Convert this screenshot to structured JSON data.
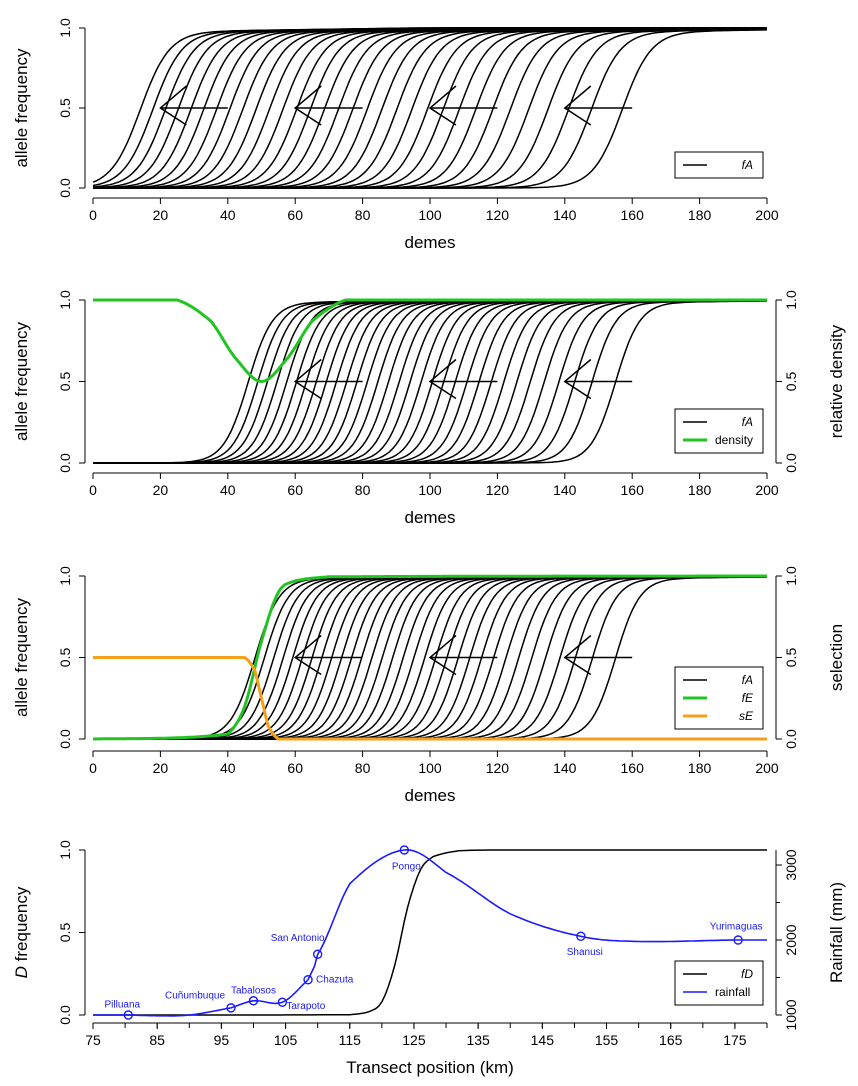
{
  "chart_data": [
    {
      "type": "line",
      "xlabel": "demes",
      "ylabel": "allele frequency",
      "xlim": [
        0,
        200
      ],
      "ylim": [
        0,
        1
      ],
      "xticks": [
        "0",
        "20",
        "40",
        "60",
        "80",
        "100",
        "120",
        "140",
        "160",
        "180",
        "200"
      ],
      "yticks": [
        "0.0",
        "0.5",
        "1.0"
      ],
      "series": [
        {
          "name": "fA",
          "color": "#000000",
          "description_values": {
            "curves": 32,
            "midpoint_start": 157,
            "midpoint_end": 14,
            "width": 4.3,
            "upper": 0.975
          }
        }
      ],
      "arrows": [
        {
          "x_from": 40,
          "x_to": 20,
          "y": 0.5
        },
        {
          "x_from": 80,
          "x_to": 60,
          "y": 0.5
        },
        {
          "x_from": 120,
          "x_to": 100,
          "y": 0.5
        },
        {
          "x_from": 160,
          "x_to": 140,
          "y": 0.5
        }
      ],
      "legend": {
        "position": "bottom-right",
        "entries": [
          {
            "label": "fA",
            "color": "#000000"
          }
        ]
      }
    },
    {
      "type": "line",
      "xlabel": "demes",
      "ylabel": "allele frequency",
      "y2label": "relative density",
      "xlim": [
        0,
        200
      ],
      "ylim": [
        0,
        1
      ],
      "xticks": [
        "0",
        "20",
        "40",
        "60",
        "80",
        "100",
        "120",
        "140",
        "160",
        "180",
        "200"
      ],
      "yticks": [
        "0.0",
        "0.5",
        "1.0"
      ],
      "series": [
        {
          "name": "fA",
          "color": "#000000",
          "description_values": {
            "curves": 32,
            "midpoint_start": 155,
            "midpoint_end": 46,
            "width": 3.6
          }
        },
        {
          "name": "density",
          "color": "#22c422",
          "x": [
            0,
            25,
            35,
            42,
            50,
            58,
            65,
            75,
            200
          ],
          "y": [
            1.0,
            1.0,
            0.87,
            0.65,
            0.5,
            0.65,
            0.87,
            1.0,
            1.0
          ]
        }
      ],
      "arrows": [
        {
          "x_from": 80,
          "x_to": 60,
          "y": 0.5
        },
        {
          "x_from": 120,
          "x_to": 100,
          "y": 0.5
        },
        {
          "x_from": 160,
          "x_to": 140,
          "y": 0.5
        }
      ],
      "legend": {
        "position": "bottom-right",
        "entries": [
          {
            "label": "fA",
            "color": "#000000"
          },
          {
            "label": "density",
            "color": "#22c422"
          }
        ]
      }
    },
    {
      "type": "line",
      "xlabel": "demes",
      "ylabel": "allele frequency",
      "y2label": "selection",
      "xlim": [
        0,
        200
      ],
      "ylim": [
        0,
        1
      ],
      "xticks": [
        "0",
        "20",
        "40",
        "60",
        "80",
        "100",
        "120",
        "140",
        "160",
        "180",
        "200"
      ],
      "yticks": [
        "0.0",
        "0.5",
        "1.0"
      ],
      "series": [
        {
          "name": "fA",
          "color": "#000000",
          "description_values": {
            "curves": 32,
            "midpoint_start": 155,
            "midpoint_end": 48,
            "width": 3.6
          }
        },
        {
          "name": "fE",
          "color": "#22c422",
          "x": [
            0,
            40,
            45,
            50,
            55,
            60,
            70,
            200
          ],
          "y": [
            0.0,
            0.03,
            0.2,
            0.6,
            0.9,
            0.97,
            0.995,
            1.0
          ]
        },
        {
          "name": "sE",
          "color": "#f5a01a",
          "x": [
            0,
            45,
            48,
            50,
            52,
            55,
            200
          ],
          "y": [
            0.5,
            0.5,
            0.42,
            0.25,
            0.08,
            0.0,
            0.0
          ]
        }
      ],
      "arrows": [
        {
          "x_from": 80,
          "x_to": 60,
          "y": 0.5
        },
        {
          "x_from": 120,
          "x_to": 100,
          "y": 0.5
        },
        {
          "x_from": 160,
          "x_to": 140,
          "y": 0.5
        }
      ],
      "legend": {
        "position": "bottom-right",
        "entries": [
          {
            "label": "fA",
            "color": "#000000"
          },
          {
            "label": "fE",
            "color": "#22c422"
          },
          {
            "label": "sE",
            "color": "#f5a01a"
          }
        ]
      }
    },
    {
      "type": "line",
      "xlabel": "Transect position (km)",
      "ylabel_prefix": "D",
      "ylabel_suffix": " frequency",
      "y2label": "Rainfall (mm)",
      "xlim": [
        75,
        180
      ],
      "ylim": [
        0,
        1
      ],
      "y2lim": [
        1000,
        3200
      ],
      "xticks": [
        "75",
        "85",
        "95",
        "105",
        "115",
        "125",
        "135",
        "145",
        "155",
        "165",
        "175"
      ],
      "yticks": [
        "0.0",
        "0.5",
        "1.0"
      ],
      "y2ticks": [
        "1000",
        "2000",
        "3000"
      ],
      "series": [
        {
          "name": "fD",
          "color": "#000000",
          "x": [
            75,
            115,
            118,
            120,
            122,
            124,
            126,
            128,
            132,
            140,
            180
          ],
          "y": [
            0,
            0.002,
            0.02,
            0.08,
            0.3,
            0.65,
            0.88,
            0.96,
            0.995,
            1.0,
            1.0
          ]
        },
        {
          "name": "rainfall",
          "color": "#1a1aff",
          "x": [
            75,
            80.5,
            85,
            90,
            96.5,
            100,
            104.5,
            108.5,
            110,
            115,
            123.5,
            130,
            140,
            151,
            160,
            175.5,
            180
          ],
          "y": [
            1000,
            1000,
            990,
            1000,
            1095,
            1190,
            1170,
            1470,
            1810,
            2750,
            3200,
            2900,
            2350,
            2050,
            1980,
            2000,
            2000
          ]
        }
      ],
      "sites": [
        {
          "name": "Pilluana",
          "x": 80.5,
          "rainfall": 1000
        },
        {
          "name": "Cuñumbuque",
          "x": 96.5,
          "rainfall": 1095
        },
        {
          "name": "Tabalosos",
          "x": 100,
          "rainfall": 1190
        },
        {
          "name": "Tarapoto",
          "x": 104.5,
          "rainfall": 1170
        },
        {
          "name": "Chazuta",
          "x": 108.5,
          "rainfall": 1470
        },
        {
          "name": "San Antonio",
          "x": 110,
          "rainfall": 1810
        },
        {
          "name": "Pongo",
          "x": 123.5,
          "rainfall": 3200
        },
        {
          "name": "Shanusi",
          "x": 151,
          "rainfall": 2050
        },
        {
          "name": "Yurimaguas",
          "x": 175.5,
          "rainfall": 2000
        }
      ],
      "legend": {
        "position": "bottom-right",
        "entries": [
          {
            "label": "fD",
            "color": "#000000"
          },
          {
            "label": "rainfall",
            "color": "#1a1aff"
          }
        ]
      }
    }
  ]
}
